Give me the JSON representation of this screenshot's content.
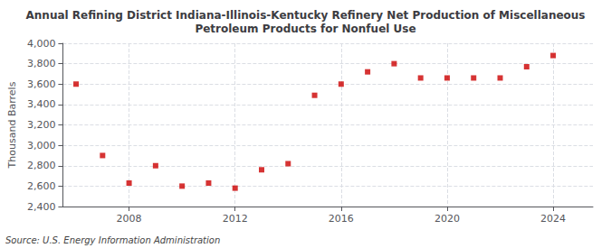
{
  "chart_data": {
    "type": "scatter",
    "title": "Annual Refining District Indiana-Illinois-Kentucky Refinery Net Production of Miscellaneous\nPetroleum Products for Nonfuel Use",
    "ylabel": "Thousand Barrels",
    "source": "Source: U.S. Energy Information Administration",
    "x": [
      2006,
      2007,
      2008,
      2009,
      2010,
      2011,
      2012,
      2013,
      2014,
      2015,
      2016,
      2017,
      2018,
      2019,
      2020,
      2021,
      2022,
      2023,
      2024
    ],
    "values": [
      3600,
      2900,
      2630,
      2800,
      2600,
      2630,
      2580,
      2760,
      2820,
      3490,
      3600,
      3720,
      3800,
      3660,
      3660,
      3660,
      3660,
      3770,
      3880
    ],
    "color": "#cc0000",
    "marker": "square",
    "xlim": [
      2005.5,
      2025.5
    ],
    "xticks": [
      2008,
      2012,
      2016,
      2020,
      2024
    ],
    "ylim": [
      2400,
      4000
    ],
    "yticks": [
      {
        "value": 2400,
        "label": "2,400"
      },
      {
        "value": 2600,
        "label": "2,600"
      },
      {
        "value": 2800,
        "label": "2,800"
      },
      {
        "value": 3000,
        "label": "3,000"
      },
      {
        "value": 3200,
        "label": "3,200"
      },
      {
        "value": 3400,
        "label": "3,400"
      },
      {
        "value": 3600,
        "label": "3,600"
      },
      {
        "value": 3800,
        "label": "3,800"
      },
      {
        "value": 4000,
        "label": "4,000"
      }
    ],
    "grid": true
  }
}
